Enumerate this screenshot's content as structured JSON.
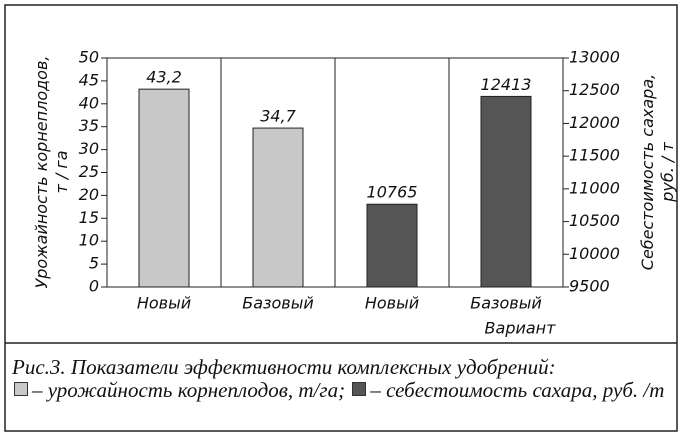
{
  "chart_data": {
    "type": "bar",
    "categories": [
      "Новый",
      "Базовый",
      "Новый",
      "Базовый"
    ],
    "xlabel": "Вариант",
    "ylabel": [
      "Урожайность корнеплодов,",
      "т / га"
    ],
    "y2label": [
      "Себестоимость сахара,",
      "руб. / т"
    ],
    "series": [
      {
        "name": "урожайность корнеплодов, т/га",
        "color": "#c8c8c8",
        "values": [
          43.2,
          34.7,
          null,
          null
        ],
        "value_labels": [
          "43,2",
          "34,7",
          null,
          null
        ]
      },
      {
        "name": "себестоимость сахара, руб. /т",
        "color": "#555555",
        "axis": "y2",
        "values": [
          null,
          null,
          10765,
          12413
        ]
      }
    ],
    "ylim": [
      0,
      50
    ],
    "yticks": [
      0,
      5,
      10,
      15,
      20,
      25,
      30,
      35,
      40,
      45,
      50
    ],
    "y2lim": [
      9500,
      13000
    ],
    "y2ticks": [
      9500,
      10000,
      10500,
      11000,
      11500,
      12000,
      12500,
      13000
    ],
    "caption": "Рис.3. Показатели эффективности комплексных удобрений:",
    "legend_dash": "–",
    "legend_delimiter": ";"
  }
}
